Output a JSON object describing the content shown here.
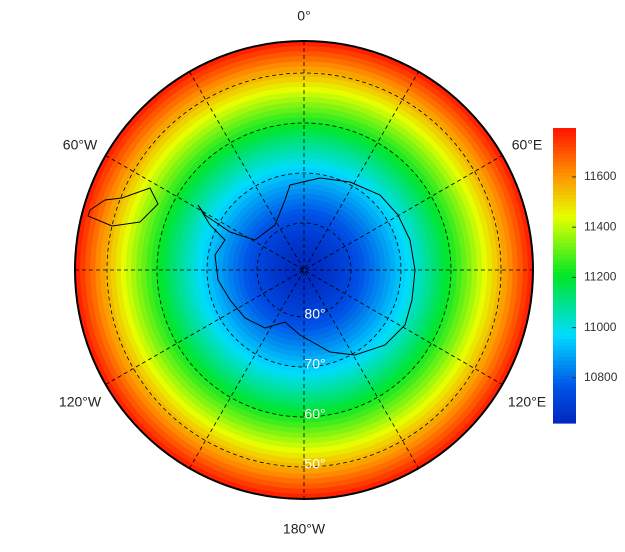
{
  "map": {
    "longitude_labels": [
      "0°",
      "60°E",
      "120°E",
      "180°W",
      "120°W",
      "60°W"
    ],
    "latitude_labels": [
      "80°",
      "70°",
      "60°",
      "50°"
    ],
    "colorbar": {
      "lim": [
        10620,
        11795
      ],
      "ticks": [
        10800,
        11000,
        11200,
        11400,
        11600
      ]
    }
  }
}
